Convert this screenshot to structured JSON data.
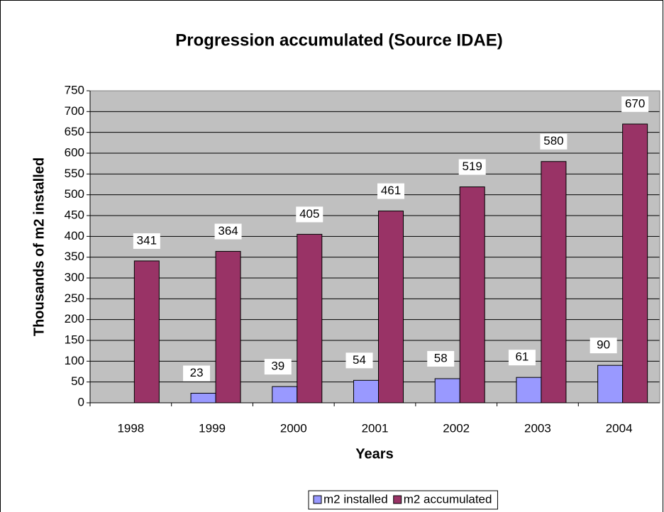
{
  "chart_data": {
    "type": "bar",
    "title": "Progression accumulated (Source IDAE)",
    "x_label": "Years",
    "y_label": "Thousands of m2 installed",
    "categories": [
      "1998",
      "1999",
      "2000",
      "2001",
      "2002",
      "2003",
      "2004"
    ],
    "series": [
      {
        "name": "m2 installed",
        "color": "#9999ff",
        "values": [
          null,
          23,
          39,
          54,
          58,
          61,
          90
        ]
      },
      {
        "name": "m2 accumulated",
        "color": "#993366",
        "values": [
          341,
          364,
          405,
          461,
          519,
          580,
          670
        ]
      }
    ],
    "ylim": [
      0,
      750
    ],
    "yticks": [
      0,
      50,
      100,
      150,
      200,
      250,
      300,
      350,
      400,
      450,
      500,
      550,
      600,
      650,
      700,
      750
    ],
    "grid": true,
    "legend": "bottom"
  }
}
